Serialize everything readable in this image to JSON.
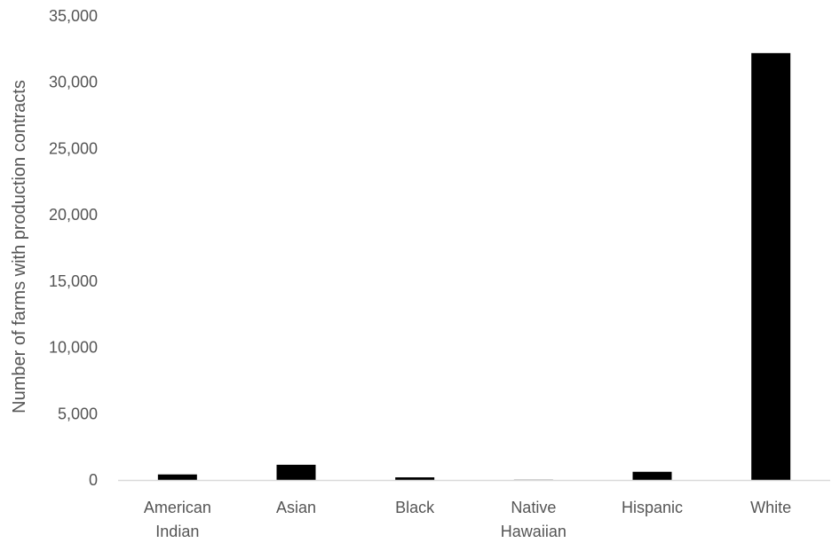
{
  "chart_data": {
    "type": "bar",
    "title": "",
    "xlabel": "",
    "ylabel": "Number of farms with production contracts",
    "categories": [
      [
        "American",
        "Indian"
      ],
      [
        "Asian"
      ],
      [
        "Black"
      ],
      [
        "Native",
        "Hawaiian"
      ],
      [
        "Hispanic"
      ],
      [
        "White"
      ]
    ],
    "values": [
      420,
      1150,
      200,
      20,
      620,
      32200
    ],
    "ylim": [
      0,
      35000
    ],
    "yticks": [
      0,
      5000,
      10000,
      15000,
      20000,
      25000,
      30000,
      35000
    ],
    "ytick_labels": [
      "0",
      "5,000",
      "10,000",
      "15,000",
      "20,000",
      "25,000",
      "30,000",
      "35,000"
    ],
    "grid": false,
    "legend": "none",
    "bar_color": "#000000",
    "axis_color": "#d9d9d9"
  }
}
